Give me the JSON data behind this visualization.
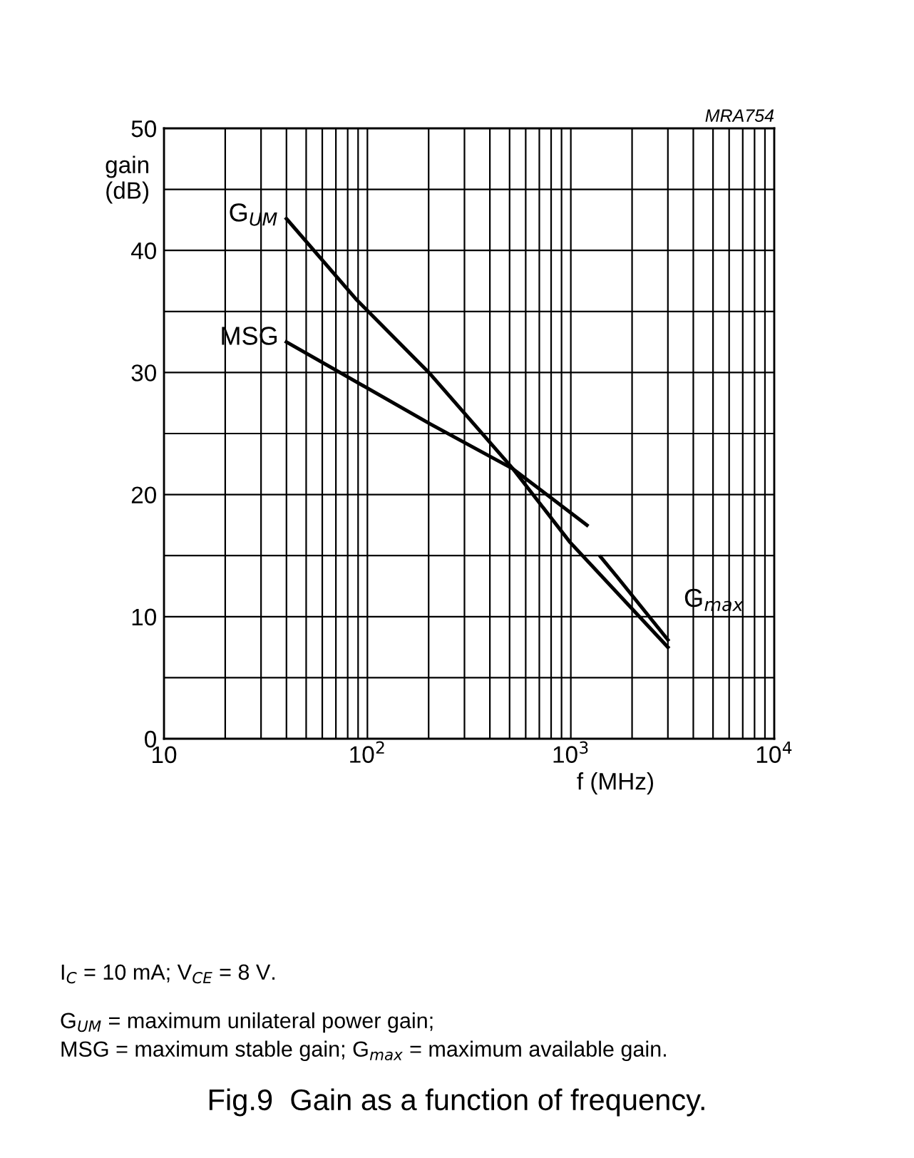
{
  "chart_data": {
    "type": "line",
    "title": "Fig.9  Gain as a function of frequency.",
    "xlabel": "f (MHz)",
    "ylabel": "gain\n(dB)",
    "series": [
      {
        "name": "G$_{UM}$",
        "color": "#000000",
        "x": [
          40,
          88,
          203,
          520,
          990,
          3000
        ],
        "values": [
          42.6,
          36,
          29.9,
          22.1,
          16.1,
          7.5
        ]
      },
      {
        "name": "MSG",
        "color": "#000000",
        "x": [
          40,
          203,
          520,
          1200
        ],
        "values": [
          32.5,
          25.8,
          22.1,
          17.5
        ]
      },
      {
        "name": "G$_{max}$",
        "color": "#000000",
        "x": [
          1400,
          1700,
          3000
        ],
        "values": [
          14.9,
          13.2,
          8.1
        ]
      }
    ],
    "log": "x",
    "xlim": [
      10,
      10000
    ],
    "xticks": [
      10,
      {
        "value": 100,
        "label": "10$^{2}$"
      },
      {
        "value": 1000,
        "label": "10$^{3}$"
      },
      {
        "value": 10000,
        "label": "10$^{4}$"
      }
    ],
    "ylim": [
      0,
      50
    ],
    "yticks": [
      0,
      {
        "value": 5,
        "label": null
      },
      10,
      {
        "value": 15,
        "label": null
      },
      20,
      {
        "value": 25,
        "label": null
      },
      30,
      {
        "value": 35,
        "label": null
      },
      40,
      {
        "value": 45,
        "label": null
      },
      50
    ],
    "grid": true,
    "legend": false,
    "annotations": [
      "MRA754",
      "I$_{C}$ = 10 mA; V$_{CE}$ = 8 V.",
      "G$_{UM}$ = maximum unilateral power gain;\nMSG = maximum stable gain; G$_{max}$ = maximum available gain."
    ]
  }
}
